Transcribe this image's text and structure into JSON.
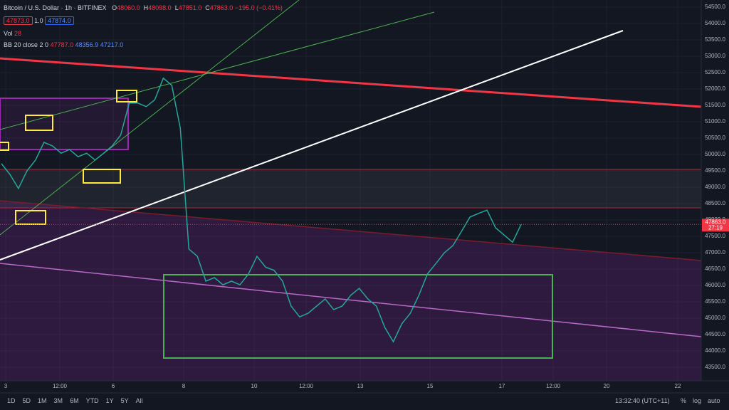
{
  "header": {
    "symbol": "Bitcoin / U.S. Dollar",
    "interval": "1h",
    "exchange": "BITFINEX",
    "ohlc": [
      {
        "key": "O",
        "value": "48060.0"
      },
      {
        "key": "H",
        "value": "48098.0"
      },
      {
        "key": "L",
        "value": "47851.0"
      },
      {
        "key": "C",
        "value": "47863.0"
      }
    ],
    "change": "−195.0 (−0.41%)",
    "sell": "47873.0",
    "spread": "1.0",
    "buy": "47874.0",
    "vol_label": "Vol",
    "vol_value": "28",
    "bb_label": "BB 20 close 2 0",
    "bb_values": [
      "47787.0",
      "48356.9",
      "47217.0"
    ]
  },
  "chart_data": {
    "type": "line",
    "color": "#26a69a",
    "values": [
      49720,
      49390,
      48960,
      49500,
      49830,
      50370,
      50260,
      50040,
      50150,
      49930,
      50040,
      49830,
      50040,
      50260,
      50590,
      51570,
      51570,
      51460,
      51670,
      52330,
      52110,
      50800,
      47110,
      46890,
      46130,
      46240,
      46020,
      46130,
      46020,
      46350,
      46890,
      46560,
      46460,
      46130,
      45370,
      45040,
      45150,
      45370,
      45590,
      45260,
      45370,
      45700,
      45910,
      45590,
      45370,
      44720,
      44280,
      44830,
      45150,
      45700,
      46350,
      46670,
      47000,
      47220,
      47650,
      48090,
      48200,
      48300,
      47760,
      47540,
      47320,
      47863
    ],
    "ylim": [
      43500,
      54500
    ],
    "yticks": [
      {
        "value": 43500,
        "label": "43500.0"
      },
      {
        "value": 44000,
        "label": "44000.0"
      },
      {
        "value": 44500,
        "label": "44500.0"
      },
      {
        "value": 45000,
        "label": "45000.0"
      },
      {
        "value": 45500,
        "label": "45500.0"
      },
      {
        "value": 46000,
        "label": "46000.0"
      },
      {
        "value": 46500,
        "label": "46500.0"
      },
      {
        "value": 47000,
        "label": "47000.0"
      },
      {
        "value": 47500,
        "label": "47500.0"
      },
      {
        "value": 48000,
        "label": "48000.0"
      },
      {
        "value": 48500,
        "label": "48500.0"
      },
      {
        "value": 49000,
        "label": "49000.0"
      },
      {
        "value": 49500,
        "label": "49500.0"
      },
      {
        "value": 50000,
        "label": "50000.0"
      },
      {
        "value": 50500,
        "label": "50500.0"
      },
      {
        "value": 51000,
        "label": "51000.0"
      },
      {
        "value": 51500,
        "label": "51500.0"
      },
      {
        "value": 52000,
        "label": "52000.0"
      },
      {
        "value": 52500,
        "label": "52500.0"
      },
      {
        "value": 53000,
        "label": "53000.0"
      },
      {
        "value": 53500,
        "label": "53500.0"
      },
      {
        "value": 54000,
        "label": "54000.0"
      },
      {
        "value": 54500,
        "label": "54500.0"
      }
    ],
    "grid": true,
    "x_labels": [
      "3",
      "12:00",
      "6",
      "8",
      "10",
      "12:00",
      "13",
      "15",
      "17",
      "12:00",
      "20",
      "22"
    ],
    "last": {
      "value": 47863,
      "label": "47863.0",
      "countdown": "27:19"
    }
  },
  "toolbar": {
    "ranges": [
      "1D",
      "5D",
      "1M",
      "3M",
      "6M",
      "YTD",
      "1Y",
      "5Y",
      "All"
    ],
    "clock": "13:32:40 (UTC+11)",
    "options": [
      "%",
      "log",
      "auto"
    ]
  }
}
